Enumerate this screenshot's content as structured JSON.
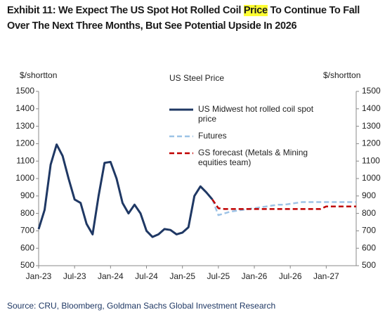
{
  "title_parts": [
    "Exhibit 11: We Expect The US Spot Hot Rolled Coil ",
    "Price",
    " To Continue To Fall Over The Next Three Months, But See Potential Upside In 2026"
  ],
  "title_highlight_color": "#ffff33",
  "source": "Source: CRU, Bloomberg, Goldman Sachs Global Investment Research",
  "chart_data": {
    "type": "line",
    "title": "US Steel Price",
    "y_label": "$/shortton",
    "y2_label": "$/shortton",
    "x": [
      "2023-01",
      "2023-02",
      "2023-03",
      "2023-04",
      "2023-05",
      "2023-06",
      "2023-07",
      "2023-08",
      "2023-09",
      "2023-10",
      "2023-11",
      "2023-12",
      "2024-01",
      "2024-02",
      "2024-03",
      "2024-04",
      "2024-05",
      "2024-06",
      "2024-07",
      "2024-08",
      "2024-09",
      "2024-10",
      "2024-11",
      "2024-12",
      "2025-01",
      "2025-02",
      "2025-03",
      "2025-04",
      "2025-05",
      "2025-06",
      "2025-07",
      "2025-08",
      "2025-09",
      "2025-10",
      "2025-11",
      "2025-12",
      "2026-01",
      "2026-02",
      "2026-03",
      "2026-04",
      "2026-05",
      "2026-06",
      "2026-07",
      "2026-08",
      "2026-09",
      "2026-10",
      "2026-11",
      "2026-12",
      "2027-01",
      "2027-02",
      "2027-03",
      "2027-04",
      "2027-05",
      "2027-06"
    ],
    "series": [
      {
        "name": "US Midwest hot rolled coil spot price",
        "color": "#1f3864",
        "dash": "none",
        "width": 3,
        "values": [
          710,
          820,
          1080,
          1195,
          1130,
          1000,
          880,
          860,
          740,
          680,
          900,
          1090,
          1095,
          1000,
          860,
          800,
          850,
          800,
          700,
          665,
          680,
          710,
          705,
          680,
          690,
          720,
          900,
          955,
          920,
          880,
          null,
          null,
          null,
          null,
          null,
          null,
          null,
          null,
          null,
          null,
          null,
          null,
          null,
          null,
          null,
          null,
          null,
          null,
          null,
          null,
          null,
          null,
          null,
          null
        ]
      },
      {
        "name": "Futures",
        "color": "#9dc3e6",
        "dash": "7 4",
        "width": 2.5,
        "values": [
          null,
          null,
          null,
          null,
          null,
          null,
          null,
          null,
          null,
          null,
          null,
          null,
          null,
          null,
          null,
          null,
          null,
          null,
          null,
          null,
          null,
          null,
          null,
          null,
          null,
          null,
          null,
          null,
          null,
          880,
          790,
          800,
          810,
          815,
          820,
          825,
          830,
          835,
          840,
          845,
          850,
          850,
          855,
          860,
          865,
          865,
          865,
          865,
          865,
          865,
          865,
          865,
          865,
          865
        ]
      },
      {
        "name": "GS forecast (Metals & Mining equities team)",
        "color": "#c00000",
        "dash": "7 4",
        "width": 2.5,
        "values": [
          null,
          null,
          null,
          null,
          null,
          null,
          null,
          null,
          null,
          null,
          null,
          null,
          null,
          null,
          null,
          null,
          null,
          null,
          null,
          null,
          null,
          null,
          null,
          null,
          null,
          null,
          null,
          null,
          null,
          880,
          830,
          825,
          825,
          825,
          825,
          825,
          825,
          825,
          825,
          825,
          825,
          825,
          825,
          825,
          825,
          825,
          825,
          825,
          840,
          840,
          840,
          840,
          840,
          840
        ]
      }
    ],
    "xlim": [
      "2023-01",
      "2027-06"
    ],
    "xticks": [
      {
        "value": "2023-01",
        "label": "Jan-23"
      },
      {
        "value": "2023-07",
        "label": "Jul-23"
      },
      {
        "value": "2024-01",
        "label": "Jan-24"
      },
      {
        "value": "2024-07",
        "label": "Jul-24"
      },
      {
        "value": "2025-01",
        "label": "Jan-25"
      },
      {
        "value": "2025-07",
        "label": "Jul-25"
      },
      {
        "value": "2026-01",
        "label": "Jan-26"
      },
      {
        "value": "2026-07",
        "label": "Jul-26"
      },
      {
        "value": "2027-01",
        "label": "Jan-27"
      }
    ],
    "ylim": [
      500,
      1500
    ],
    "yticks": [
      500,
      600,
      700,
      800,
      900,
      1000,
      1100,
      1200,
      1300,
      1400,
      1500
    ],
    "y2lim": [
      500,
      1500
    ],
    "y2ticks": [
      500,
      600,
      700,
      800,
      900,
      1000,
      1100,
      1200,
      1300,
      1400,
      1500
    ]
  }
}
